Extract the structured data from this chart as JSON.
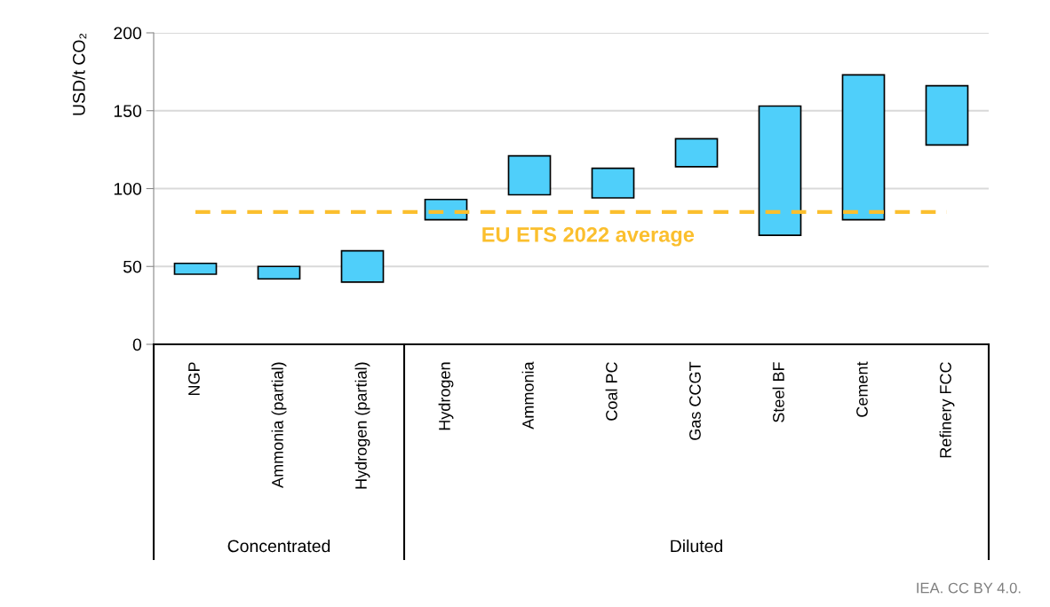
{
  "chart_data": {
    "type": "bar",
    "ylabel": "USD/t CO₂",
    "categories": [
      "NGP",
      "Ammonia (partial)",
      "Hydrogen (partial)",
      "Hydrogen",
      "Ammonia",
      "Coal PC",
      "Gas CCGT",
      "Steel BF",
      "Cement",
      "Refinery FCC"
    ],
    "base": [
      45,
      42,
      40,
      80,
      96,
      94,
      114,
      70,
      80,
      128
    ],
    "values": [
      7,
      8,
      20,
      13,
      25,
      19,
      18,
      83,
      93,
      38
    ],
    "color": "#4fcffa",
    "ylim": [
      0,
      200
    ],
    "yticks": [
      0,
      50,
      100,
      150,
      200
    ],
    "grid": "y",
    "ref_lines": [
      {
        "axis": "y",
        "value": 85,
        "label": "EU ETS 2022 average",
        "color": "#fbbf2e",
        "line_style": "dashed"
      }
    ],
    "annotations": [
      "Concentrated",
      "Diluted",
      "IEA. CC BY 4.0."
    ]
  }
}
